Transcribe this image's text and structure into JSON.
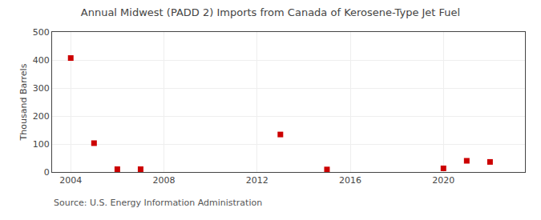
{
  "chart_data": {
    "type": "scatter",
    "title": "Annual Midwest (PADD 2) Imports from Canada of Kerosene-Type Jet Fuel",
    "ylabel": "Thousand Barrels",
    "annotations": [
      "Source: U.S. Energy Information Administration"
    ],
    "x": [
      2004,
      2005,
      2006,
      2007,
      2013,
      2015,
      2020,
      2021,
      2022
    ],
    "values": [
      407,
      103,
      10,
      10,
      134,
      9,
      13,
      40,
      36
    ],
    "color": "#cc0000",
    "marker": "square",
    "xlim": [
      2003.2,
      2023.5
    ],
    "xticks": [
      2004,
      2008,
      2012,
      2016,
      2020
    ],
    "ylim": [
      0,
      500
    ],
    "yticks": [
      0,
      100,
      200,
      300,
      400,
      500
    ],
    "grid": true
  }
}
